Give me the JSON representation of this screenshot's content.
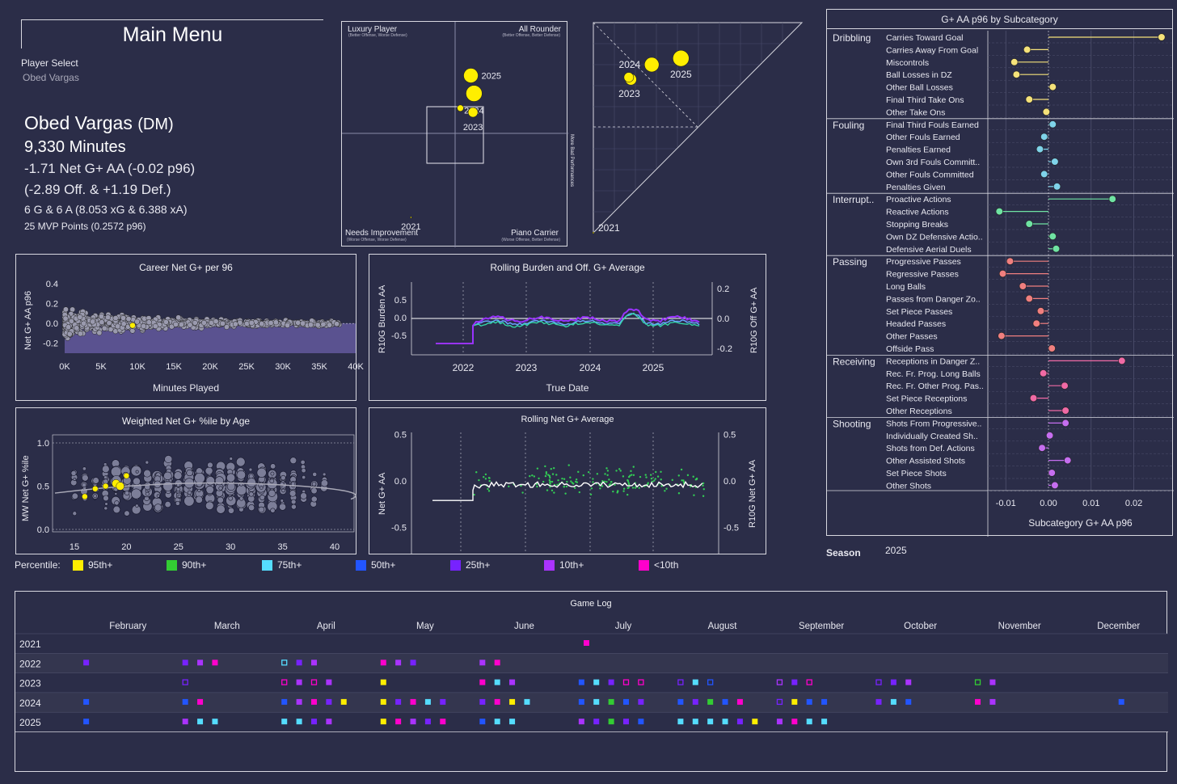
{
  "menu": {
    "label": "Main Menu"
  },
  "player_select": {
    "label": "Player Select",
    "value": "Obed Vargas"
  },
  "player": {
    "name": "Obed Vargas",
    "position": "(DM)",
    "minutes": "9,330 Minutes",
    "net": "-1.71 Net G+ AA (-0.02 p96)",
    "split": "(-2.89 Off. & +1.19 Def.)",
    "goals": "6 G & 6 A (8.053 xG & 6.388 xA)",
    "mvp": "25 MVP Points (0.2572 p96)"
  },
  "quadrant": {
    "tl": "Luxury Player",
    "tl_sub": "(Better Offense, Worse Defense)",
    "tr": "All Rounder",
    "tr_sub": "(Better Offense, Better Defense)",
    "bl": "Needs Improvement",
    "bl_sub": "(Worse Offense, Worse Defense)",
    "br": "Piano Carrier",
    "br_sub": "(Worse Offense, Better Defense)",
    "points": [
      {
        "label": "2025",
        "x": 0.15,
        "y": 0.55,
        "r": 9
      },
      {
        "label": "2024",
        "x": 0.18,
        "y": 0.38,
        "r": 10
      },
      {
        "label": "2023",
        "x": 0.17,
        "y": 0.2,
        "r": 6
      },
      {
        "label": "",
        "x": 0.05,
        "y": 0.24,
        "r": 4
      },
      {
        "label": "2021",
        "x": -0.42,
        "y": -0.8,
        "r": 1
      }
    ]
  },
  "triangle": {
    "side_label": "More Bad Performances",
    "points": [
      {
        "label": "2025",
        "x": 0.42,
        "y": 0.83,
        "r": 10
      },
      {
        "label": "2024",
        "x": 0.28,
        "y": 0.8,
        "r": 9
      },
      {
        "label": "2023",
        "x": 0.18,
        "y": 0.73,
        "r": 7
      },
      {
        "label": "",
        "x": 0.17,
        "y": 0.74,
        "r": 6
      },
      {
        "label": "2021",
        "x": 0.0,
        "y": 0.0,
        "r": 1
      }
    ]
  },
  "career": {
    "title": "Career Net G+ per 96",
    "xlabel": "Minutes Played",
    "ylabel": "Net G+ AA p96",
    "xticks": [
      "0K",
      "5K",
      "10K",
      "15K",
      "20K",
      "25K",
      "30K",
      "35K",
      "40K"
    ],
    "yticks": [
      "0.4",
      "0.2",
      "0.0",
      "-0.2"
    ],
    "highlight": {
      "minutes": 9330,
      "value": -0.02
    }
  },
  "rolling_burden": {
    "title": "Rolling Burden and Off. G+ Average",
    "xlabel": "True Date",
    "ylabel_left": "R10G Burden AA",
    "ylabel_right": "R10G Off G+ AA",
    "xticks": [
      "2022",
      "2023",
      "2024",
      "2025"
    ],
    "yticks_left": [
      "0.5",
      "0.0",
      "-0.5"
    ],
    "yticks_right": [
      "0.2",
      "0.0",
      "-0.2"
    ]
  },
  "age_chart": {
    "title": "Weighted Net G+ %ile by Age",
    "ylabel": "MW Net G+ %ile",
    "xticks": [
      "15",
      "20",
      "25",
      "30",
      "35",
      "40"
    ],
    "yticks": [
      "1.0",
      "0.5",
      "0.0"
    ],
    "player_points": [
      {
        "age": 16,
        "value": 0.38
      },
      {
        "age": 17,
        "value": 0.47
      },
      {
        "age": 18,
        "value": 0.5
      },
      {
        "age": 19,
        "value": 0.53
      },
      {
        "age": 20,
        "value": 0.62
      },
      {
        "age": 20,
        "value": 0.5
      }
    ]
  },
  "rolling_net": {
    "title": "Rolling Net G+ Average",
    "ylabel_left": "Net G+ AA",
    "ylabel_right": "R10G Net G+ AA",
    "yticks_left": [
      "0.5",
      "0.0",
      "-0.5"
    ],
    "yticks_right": [
      "0.5",
      "0.0",
      "-0.5"
    ]
  },
  "legend": {
    "label": "Percentile:",
    "items": [
      {
        "label": "95th+",
        "color": "#ffee00"
      },
      {
        "label": "90th+",
        "color": "#33cc33"
      },
      {
        "label": "75th+",
        "color": "#55ddff"
      },
      {
        "label": "50th+",
        "color": "#2255ff"
      },
      {
        "label": "25th+",
        "color": "#7722ff"
      },
      {
        "label": "10th+",
        "color": "#aa33ff"
      },
      {
        "label": "<10th",
        "color": "#ff00cc"
      }
    ]
  },
  "subcat": {
    "title": "G+ AA p96 by Subcategory",
    "xlabel": "Subcategory G+ AA p96",
    "xticks": [
      "-0.01",
      "0.00",
      "0.01",
      "0.02"
    ],
    "season_label": "Season",
    "season_value": "2025",
    "groups": [
      {
        "name": "Dribbling",
        "items": [
          {
            "label": "Carries Toward Goal",
            "value": 0.0265,
            "color": "#f5e27a"
          },
          {
            "label": "Carries Away From Goal",
            "value": -0.005,
            "color": "#f5e27a"
          },
          {
            "label": "Miscontrols",
            "value": -0.008,
            "color": "#f5e27a"
          },
          {
            "label": "Ball Losses in DZ",
            "value": -0.0075,
            "color": "#f5e27a"
          },
          {
            "label": "Other Ball Losses",
            "value": 0.001,
            "color": "#f5e27a"
          },
          {
            "label": "Final Third Take Ons",
            "value": -0.0045,
            "color": "#f5e27a"
          },
          {
            "label": "Other Take Ons",
            "value": -0.0005,
            "color": "#f5e27a"
          }
        ]
      },
      {
        "name": "Fouling",
        "items": [
          {
            "label": "Final Third Fouls Earned",
            "value": 0.001,
            "color": "#7fd3ea"
          },
          {
            "label": "Other Fouls Earned",
            "value": -0.001,
            "color": "#7fd3ea"
          },
          {
            "label": "Penalties Earned",
            "value": -0.002,
            "color": "#7fd3ea"
          },
          {
            "label": "Own 3rd Fouls Committ..",
            "value": 0.0015,
            "color": "#7fd3ea"
          },
          {
            "label": "Other Fouls Committed",
            "value": -0.001,
            "color": "#7fd3ea"
          },
          {
            "label": "Penalties Given",
            "value": 0.002,
            "color": "#7fd3ea"
          }
        ]
      },
      {
        "name": "Interrupt..",
        "items": [
          {
            "label": "Proactive Actions",
            "value": 0.015,
            "color": "#6fe3a3"
          },
          {
            "label": "Reactive Actions",
            "value": -0.0115,
            "color": "#6fe3a3"
          },
          {
            "label": "Stopping Breaks",
            "value": -0.0045,
            "color": "#6fe3a3"
          },
          {
            "label": "Own DZ Defensive Actio..",
            "value": 0.001,
            "color": "#6fe3a3"
          },
          {
            "label": "Defensive Aerial Duels",
            "value": 0.0018,
            "color": "#6fe3a3"
          }
        ]
      },
      {
        "name": "Passing",
        "items": [
          {
            "label": "Progressive Passes",
            "value": -0.009,
            "color": "#f07f7f"
          },
          {
            "label": "Regressive Passes",
            "value": -0.0107,
            "color": "#f07f7f"
          },
          {
            "label": "Long Balls",
            "value": -0.006,
            "color": "#f07f7f"
          },
          {
            "label": "Passes from Danger Zo..",
            "value": -0.0045,
            "color": "#f07f7f"
          },
          {
            "label": "Set Piece Passes",
            "value": -0.0018,
            "color": "#f07f7f"
          },
          {
            "label": "Headed Passes",
            "value": -0.0028,
            "color": "#f07f7f"
          },
          {
            "label": "Other Passes",
            "value": -0.011,
            "color": "#f07f7f"
          },
          {
            "label": "Offside Pass",
            "value": 0.0008,
            "color": "#f07f7f"
          }
        ]
      },
      {
        "name": "Receiving",
        "items": [
          {
            "label": "Receptions in Danger Z..",
            "value": 0.0172,
            "color": "#f06aa5"
          },
          {
            "label": "Rec. Fr. Prog. Long Balls",
            "value": -0.0012,
            "color": "#f06aa5"
          },
          {
            "label": "Rec. Fr. Other Prog. Pas..",
            "value": 0.0038,
            "color": "#f06aa5"
          },
          {
            "label": "Set Piece Receptions",
            "value": -0.0035,
            "color": "#f06aa5"
          },
          {
            "label": "Other Receptions",
            "value": 0.004,
            "color": "#f06aa5"
          }
        ]
      },
      {
        "name": "Shooting",
        "items": [
          {
            "label": "Shots From Progressive..",
            "value": 0.004,
            "color": "#c56ef0"
          },
          {
            "label": "Individually Created Sh..",
            "value": 0.0003,
            "color": "#c56ef0"
          },
          {
            "label": "Shots from Def. Actions",
            "value": -0.0015,
            "color": "#c56ef0"
          },
          {
            "label": "Other Assisted Shots",
            "value": 0.0045,
            "color": "#c56ef0"
          },
          {
            "label": "Set Piece Shots",
            "value": 0.0008,
            "color": "#c56ef0"
          },
          {
            "label": "Other Shots",
            "value": 0.0015,
            "color": "#c56ef0"
          }
        ]
      }
    ]
  },
  "gamelog": {
    "title": "Game Log",
    "months": [
      "February",
      "March",
      "April",
      "May",
      "June",
      "July",
      "August",
      "September",
      "October",
      "November",
      "December"
    ],
    "years": [
      {
        "year": "2021",
        "games": [
          {
            "m": 5,
            "o": 0.1,
            "c": 6
          }
        ]
      },
      {
        "year": "2022",
        "games": [
          {
            "m": 0,
            "o": 0.05,
            "c": 4
          },
          {
            "m": 1,
            "o": 0.05,
            "c": 4
          },
          {
            "m": 1,
            "o": 0.2,
            "c": 5
          },
          {
            "m": 1,
            "o": 0.35,
            "c": 6
          },
          {
            "m": 2,
            "o": 0.05,
            "c": 2,
            "h": 1
          },
          {
            "m": 2,
            "o": 0.2,
            "c": 4
          },
          {
            "m": 2,
            "o": 0.35,
            "c": 5
          },
          {
            "m": 3,
            "o": 0.05,
            "c": 6
          },
          {
            "m": 3,
            "o": 0.2,
            "c": 5
          },
          {
            "m": 3,
            "o": 0.35,
            "c": 4
          },
          {
            "m": 4,
            "o": 0.05,
            "c": 5
          },
          {
            "m": 4,
            "o": 0.2,
            "c": 6
          }
        ]
      },
      {
        "year": "2023",
        "games": [
          {
            "m": 1,
            "o": 0.05,
            "c": 4,
            "h": 1
          },
          {
            "m": 2,
            "o": 0.05,
            "c": 6,
            "h": 1
          },
          {
            "m": 2,
            "o": 0.2,
            "c": 5
          },
          {
            "m": 2,
            "o": 0.35,
            "c": 6,
            "h": 1
          },
          {
            "m": 2,
            "o": 0.5,
            "c": 5
          },
          {
            "m": 3,
            "o": 0.05,
            "c": 0
          },
          {
            "m": 4,
            "o": 0.05,
            "c": 6
          },
          {
            "m": 4,
            "o": 0.2,
            "c": 2
          },
          {
            "m": 4,
            "o": 0.35,
            "c": 5
          },
          {
            "m": 5,
            "o": 0.05,
            "c": 3
          },
          {
            "m": 5,
            "o": 0.2,
            "c": 2
          },
          {
            "m": 5,
            "o": 0.35,
            "c": 4
          },
          {
            "m": 5,
            "o": 0.5,
            "c": 6,
            "h": 1
          },
          {
            "m": 5,
            "o": 0.65,
            "c": 6,
            "h": 1
          },
          {
            "m": 6,
            "o": 0.05,
            "c": 4,
            "h": 1
          },
          {
            "m": 6,
            "o": 0.2,
            "c": 2
          },
          {
            "m": 6,
            "o": 0.35,
            "c": 3,
            "h": 1
          },
          {
            "m": 7,
            "o": 0.05,
            "c": 5,
            "h": 1
          },
          {
            "m": 7,
            "o": 0.2,
            "c": 4
          },
          {
            "m": 7,
            "o": 0.35,
            "c": 6,
            "h": 1
          },
          {
            "m": 8,
            "o": 0.05,
            "c": 4,
            "h": 1
          },
          {
            "m": 8,
            "o": 0.2,
            "c": 4
          },
          {
            "m": 8,
            "o": 0.35,
            "c": 5
          },
          {
            "m": 9,
            "o": 0.05,
            "c": 1,
            "h": 1
          },
          {
            "m": 9,
            "o": 0.2,
            "c": 5
          }
        ]
      },
      {
        "year": "2024",
        "games": [
          {
            "m": 0,
            "o": 0.05,
            "c": 3
          },
          {
            "m": 1,
            "o": 0.05,
            "c": 3
          },
          {
            "m": 1,
            "o": 0.2,
            "c": 6
          },
          {
            "m": 2,
            "o": 0.05,
            "c": 3
          },
          {
            "m": 2,
            "o": 0.2,
            "c": 5
          },
          {
            "m": 2,
            "o": 0.35,
            "c": 6
          },
          {
            "m": 2,
            "o": 0.5,
            "c": 4
          },
          {
            "m": 2,
            "o": 0.65,
            "c": 0
          },
          {
            "m": 3,
            "o": 0.05,
            "c": 0
          },
          {
            "m": 3,
            "o": 0.2,
            "c": 4
          },
          {
            "m": 3,
            "o": 0.35,
            "c": 6
          },
          {
            "m": 3,
            "o": 0.5,
            "c": 2
          },
          {
            "m": 3,
            "o": 0.65,
            "c": 4
          },
          {
            "m": 4,
            "o": 0.05,
            "c": 4
          },
          {
            "m": 4,
            "o": 0.2,
            "c": 6
          },
          {
            "m": 4,
            "o": 0.35,
            "c": 0
          },
          {
            "m": 4,
            "o": 0.5,
            "c": 2
          },
          {
            "m": 5,
            "o": 0.05,
            "c": 3
          },
          {
            "m": 5,
            "o": 0.2,
            "c": 2
          },
          {
            "m": 5,
            "o": 0.35,
            "c": 1
          },
          {
            "m": 5,
            "o": 0.5,
            "c": 3
          },
          {
            "m": 5,
            "o": 0.65,
            "c": 4
          },
          {
            "m": 6,
            "o": 0.05,
            "c": 3
          },
          {
            "m": 6,
            "o": 0.2,
            "c": 4
          },
          {
            "m": 6,
            "o": 0.35,
            "c": 1
          },
          {
            "m": 6,
            "o": 0.5,
            "c": 3
          },
          {
            "m": 6,
            "o": 0.65,
            "c": 6
          },
          {
            "m": 7,
            "o": 0.05,
            "c": 4,
            "h": 1
          },
          {
            "m": 7,
            "o": 0.2,
            "c": 0
          },
          {
            "m": 7,
            "o": 0.35,
            "c": 3
          },
          {
            "m": 7,
            "o": 0.5,
            "c": 3
          },
          {
            "m": 8,
            "o": 0.05,
            "c": 4
          },
          {
            "m": 8,
            "o": 0.2,
            "c": 2
          },
          {
            "m": 8,
            "o": 0.35,
            "c": 3
          },
          {
            "m": 9,
            "o": 0.05,
            "c": 6
          },
          {
            "m": 9,
            "o": 0.2,
            "c": 5
          },
          {
            "m": 10,
            "o": 0.5,
            "c": 3
          }
        ]
      },
      {
        "year": "2025",
        "games": [
          {
            "m": 0,
            "o": 0.05,
            "c": 3
          },
          {
            "m": 1,
            "o": 0.05,
            "c": 5
          },
          {
            "m": 1,
            "o": 0.2,
            "c": 2
          },
          {
            "m": 1,
            "o": 0.35,
            "c": 2
          },
          {
            "m": 2,
            "o": 0.05,
            "c": 2
          },
          {
            "m": 2,
            "o": 0.2,
            "c": 2
          },
          {
            "m": 2,
            "o": 0.35,
            "c": 4
          },
          {
            "m": 2,
            "o": 0.5,
            "c": 5
          },
          {
            "m": 3,
            "o": 0.05,
            "c": 0
          },
          {
            "m": 3,
            "o": 0.2,
            "c": 6
          },
          {
            "m": 3,
            "o": 0.35,
            "c": 5
          },
          {
            "m": 3,
            "o": 0.5,
            "c": 4
          },
          {
            "m": 3,
            "o": 0.65,
            "c": 6
          },
          {
            "m": 4,
            "o": 0.05,
            "c": 3
          },
          {
            "m": 4,
            "o": 0.2,
            "c": 2
          },
          {
            "m": 4,
            "o": 0.35,
            "c": 2
          },
          {
            "m": 5,
            "o": 0.05,
            "c": 5
          },
          {
            "m": 5,
            "o": 0.2,
            "c": 4
          },
          {
            "m": 5,
            "o": 0.35,
            "c": 1
          },
          {
            "m": 5,
            "o": 0.5,
            "c": 4
          },
          {
            "m": 5,
            "o": 0.65,
            "c": 3
          },
          {
            "m": 6,
            "o": 0.05,
            "c": 2
          },
          {
            "m": 6,
            "o": 0.2,
            "c": 2
          },
          {
            "m": 6,
            "o": 0.35,
            "c": 2
          },
          {
            "m": 6,
            "o": 0.5,
            "c": 2
          },
          {
            "m": 6,
            "o": 0.65,
            "c": 4
          },
          {
            "m": 6,
            "o": 0.8,
            "c": 0
          },
          {
            "m": 7,
            "o": 0.05,
            "c": 5
          },
          {
            "m": 7,
            "o": 0.2,
            "c": 6
          },
          {
            "m": 7,
            "o": 0.35,
            "c": 2
          },
          {
            "m": 7,
            "o": 0.5,
            "c": 2
          }
        ]
      }
    ]
  }
}
